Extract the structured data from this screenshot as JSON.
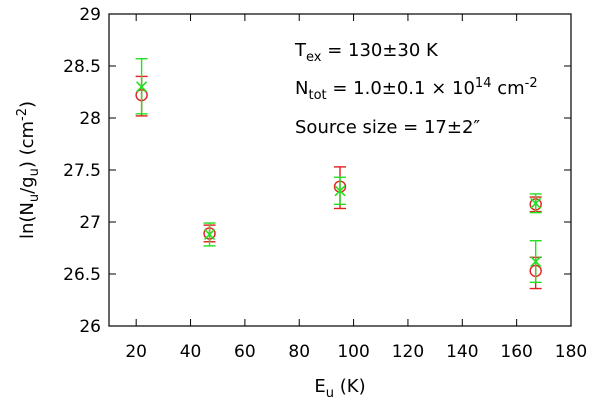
{
  "chart_data": {
    "type": "scatter",
    "xlim": [
      10,
      180
    ],
    "ylim": [
      26,
      29
    ],
    "xticks": [
      20,
      40,
      60,
      80,
      100,
      120,
      140,
      160,
      180
    ],
    "yticks": [
      26,
      26.5,
      27,
      27.5,
      28,
      28.5,
      29
    ],
    "xlabel": {
      "main": "E",
      "sub": "u",
      "rest": " (K)"
    },
    "ylabel": {
      "pre": "ln(N",
      "sub1": "u",
      "mid": "/g",
      "sub2": "u",
      "post1": ") (cm",
      "sup": "-2",
      "post2": ")"
    },
    "grid": false,
    "annotations": [
      {
        "pre": "T",
        "sub": "ex",
        "post": " =  130±30 K"
      },
      {
        "pre": "N",
        "sub": "tot",
        "post": " = 1.0±0.1 × 10",
        "sup": "14",
        "post2": " cm",
        "sup2": "-2"
      },
      {
        "pre": "Source size = 17±2″"
      }
    ],
    "series": [
      {
        "marker": "circle",
        "color": "#e02020",
        "points": [
          {
            "x": 22,
            "y": 28.22,
            "yerr": [
              28.02,
              28.4
            ]
          },
          {
            "x": 47,
            "y": 26.89,
            "yerr": [
              26.81,
              26.97
            ]
          },
          {
            "x": 95,
            "y": 27.34,
            "yerr": [
              27.13,
              27.53
            ]
          },
          {
            "x": 167,
            "y": 27.17,
            "yerr": [
              27.1,
              27.24
            ]
          },
          {
            "x": 167,
            "y": 26.53,
            "yerr": [
              26.36,
              26.66
            ]
          }
        ]
      },
      {
        "marker": "x",
        "color": "#22e022",
        "points": [
          {
            "x": 22,
            "y": 28.3,
            "yerr": [
              28.04,
              28.57
            ]
          },
          {
            "x": 47,
            "y": 26.88,
            "yerr": [
              26.77,
              26.99
            ]
          },
          {
            "x": 95,
            "y": 27.3,
            "yerr": [
              27.17,
              27.43
            ]
          },
          {
            "x": 167,
            "y": 27.18,
            "yerr": [
              27.09,
              27.27
            ]
          },
          {
            "x": 167,
            "y": 26.62,
            "yerr": [
              26.42,
              26.82
            ]
          }
        ]
      }
    ]
  }
}
